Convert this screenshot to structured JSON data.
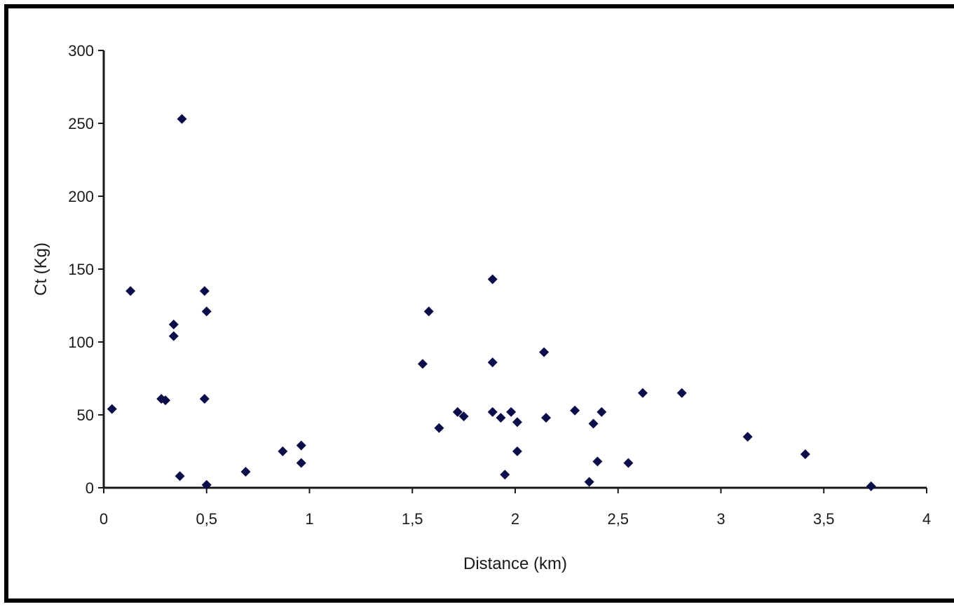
{
  "chart_data": {
    "type": "scatter",
    "title": "",
    "xlabel": "Distance (km)",
    "ylabel": "Ct (Kg)",
    "xlim": [
      0,
      4
    ],
    "ylim": [
      0,
      300
    ],
    "grid": false,
    "legend": "none",
    "x_ticks": [
      0,
      0.5,
      1,
      1.5,
      2,
      2.5,
      3,
      3.5,
      4
    ],
    "x_tick_labels": [
      "0",
      "0,5",
      "1",
      "1,5",
      "2",
      "2,5",
      "3",
      "3,5",
      "4"
    ],
    "y_ticks": [
      0,
      50,
      100,
      150,
      200,
      250,
      300
    ],
    "y_tick_labels": [
      "0",
      "50",
      "100",
      "150",
      "200",
      "250",
      "300"
    ],
    "marker_color": "#0d0d4a",
    "points": [
      {
        "x": 0.04,
        "y": 54
      },
      {
        "x": 0.13,
        "y": 135
      },
      {
        "x": 0.28,
        "y": 61
      },
      {
        "x": 0.3,
        "y": 60
      },
      {
        "x": 0.34,
        "y": 112
      },
      {
        "x": 0.34,
        "y": 104
      },
      {
        "x": 0.37,
        "y": 8
      },
      {
        "x": 0.38,
        "y": 253
      },
      {
        "x": 0.49,
        "y": 135
      },
      {
        "x": 0.5,
        "y": 121
      },
      {
        "x": 0.49,
        "y": 61
      },
      {
        "x": 0.5,
        "y": 2
      },
      {
        "x": 0.69,
        "y": 11
      },
      {
        "x": 0.87,
        "y": 25
      },
      {
        "x": 0.96,
        "y": 29
      },
      {
        "x": 0.96,
        "y": 17
      },
      {
        "x": 1.55,
        "y": 85
      },
      {
        "x": 1.58,
        "y": 121
      },
      {
        "x": 1.63,
        "y": 41
      },
      {
        "x": 1.72,
        "y": 52
      },
      {
        "x": 1.75,
        "y": 49
      },
      {
        "x": 1.89,
        "y": 143
      },
      {
        "x": 1.89,
        "y": 86
      },
      {
        "x": 1.89,
        "y": 52
      },
      {
        "x": 1.93,
        "y": 48
      },
      {
        "x": 1.95,
        "y": 9
      },
      {
        "x": 1.98,
        "y": 52
      },
      {
        "x": 2.01,
        "y": 45
      },
      {
        "x": 2.01,
        "y": 25
      },
      {
        "x": 2.14,
        "y": 93
      },
      {
        "x": 2.15,
        "y": 48
      },
      {
        "x": 2.29,
        "y": 53
      },
      {
        "x": 2.36,
        "y": 4
      },
      {
        "x": 2.38,
        "y": 44
      },
      {
        "x": 2.4,
        "y": 18
      },
      {
        "x": 2.42,
        "y": 52
      },
      {
        "x": 2.55,
        "y": 17
      },
      {
        "x": 2.62,
        "y": 65
      },
      {
        "x": 2.81,
        "y": 65
      },
      {
        "x": 3.13,
        "y": 35
      },
      {
        "x": 3.41,
        "y": 23
      },
      {
        "x": 3.73,
        "y": 1
      }
    ]
  }
}
